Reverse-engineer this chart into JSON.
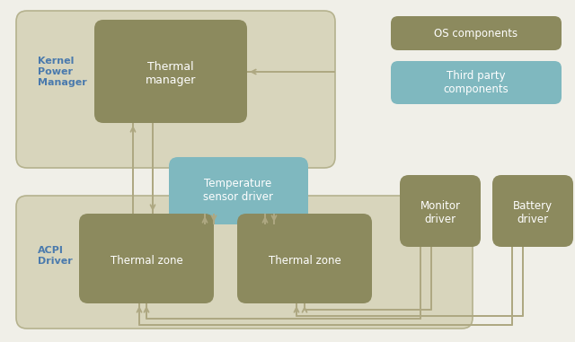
{
  "bg_color": "#f0efe8",
  "olive_dark": "#8c8a5e",
  "teal_mid": "#7fb8bf",
  "container_fill": "#d8d5bc",
  "container_edge": "#b5b28e",
  "white": "#ffffff",
  "blue_label": "#4a7aad",
  "arrow_col": "#aea882",
  "fig_w": 6.4,
  "fig_h": 3.81,
  "kernel_label": "Kernel\nPower\nManager",
  "acpi_label": "ACPI\nDriver",
  "thermal_manager_label": "Thermal\nmanager",
  "temp_sensor_label": "Temperature\nsensor driver",
  "thermal_zone1_label": "Thermal zone",
  "thermal_zone2_label": "Thermal zone",
  "monitor_driver_label": "Monitor\ndriver",
  "battery_driver_label": "Battery\ndriver",
  "os_label": "OS components",
  "third_label": "Third party\ncomponents"
}
